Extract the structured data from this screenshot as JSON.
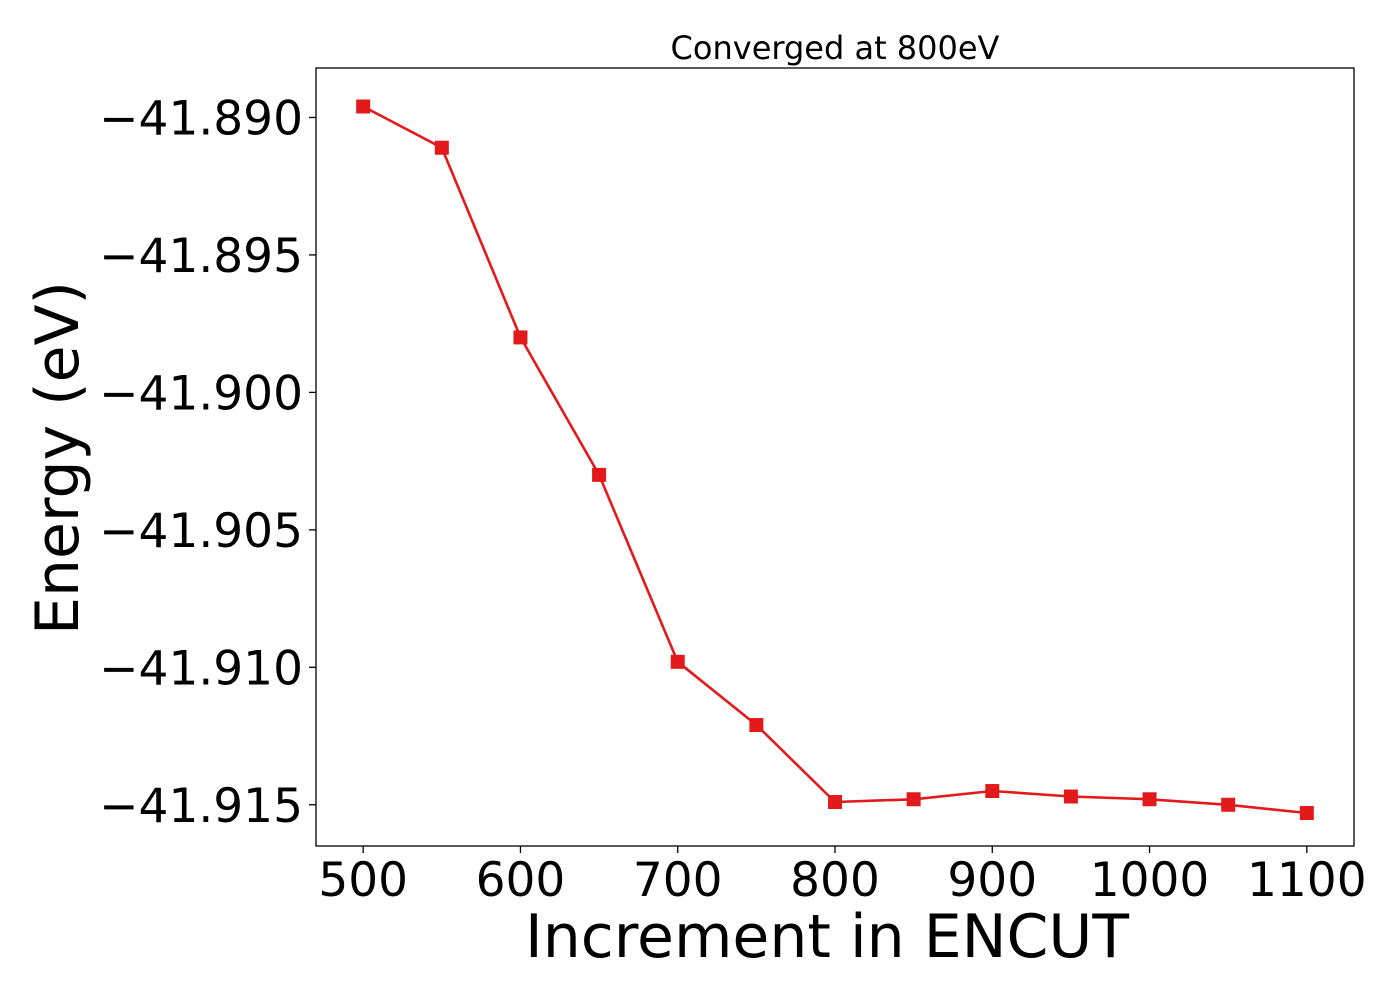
{
  "chart_data": {
    "type": "line",
    "title": "Converged at 800eV",
    "xlabel": "Increment in ENCUT",
    "ylabel": "Energy (eV)",
    "xlim": [
      470,
      1130
    ],
    "ylim": [
      -41.9165,
      -41.8882
    ],
    "x_ticks": [
      500,
      600,
      700,
      800,
      900,
      1000,
      1100
    ],
    "x_tick_labels": [
      "500",
      "600",
      "700",
      "800",
      "900",
      "1000",
      "1100"
    ],
    "y_ticks": [
      -41.89,
      -41.895,
      -41.9,
      -41.905,
      -41.91,
      -41.915
    ],
    "y_tick_labels": [
      "−41.890",
      "−41.895",
      "−41.900",
      "−41.905",
      "−41.910",
      "−41.915"
    ],
    "grid": false,
    "marker": "square",
    "color": "#e31a1c",
    "series": [
      {
        "x": [
          500,
          550,
          600,
          650,
          700,
          750,
          800,
          850,
          900,
          950,
          1000,
          1050,
          1100
        ],
        "y": [
          -41.8896,
          -41.8911,
          -41.898,
          -41.903,
          -41.9098,
          -41.9121,
          -41.9149,
          -41.9148,
          -41.9145,
          -41.9147,
          -41.9148,
          -41.915,
          -41.9153
        ]
      }
    ]
  }
}
